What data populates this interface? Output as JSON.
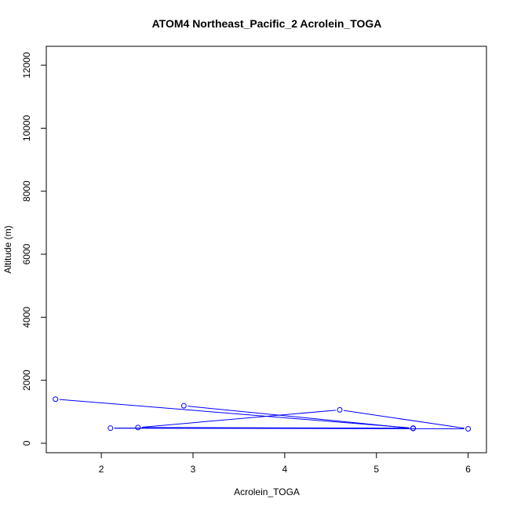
{
  "chart_data": {
    "type": "line",
    "title": "ATOM4 Northeast_Pacific_2 Acrolein_TOGA",
    "xlabel": "Acrolein_TOGA",
    "ylabel": "Altitude (m)",
    "xlim": [
      1.4,
      6.2
    ],
    "ylim": [
      -300,
      12600
    ],
    "x_ticks": [
      2,
      3,
      4,
      5,
      6
    ],
    "y_ticks": [
      0,
      2000,
      4000,
      6000,
      8000,
      10000,
      12000
    ],
    "grid": false,
    "line_color": "#0000ff",
    "marker": "open-circle",
    "series": [
      {
        "points": [
          {
            "x": 1.5,
            "y": 1400
          },
          {
            "x": 5.4,
            "y": 480
          },
          {
            "x": 2.4,
            "y": 500
          },
          {
            "x": 4.6,
            "y": 1060
          },
          {
            "x": 6.0,
            "y": 460
          },
          {
            "x": 2.1,
            "y": 480
          },
          {
            "x": 5.4,
            "y": 470
          },
          {
            "x": 2.9,
            "y": 1190
          }
        ]
      }
    ]
  }
}
